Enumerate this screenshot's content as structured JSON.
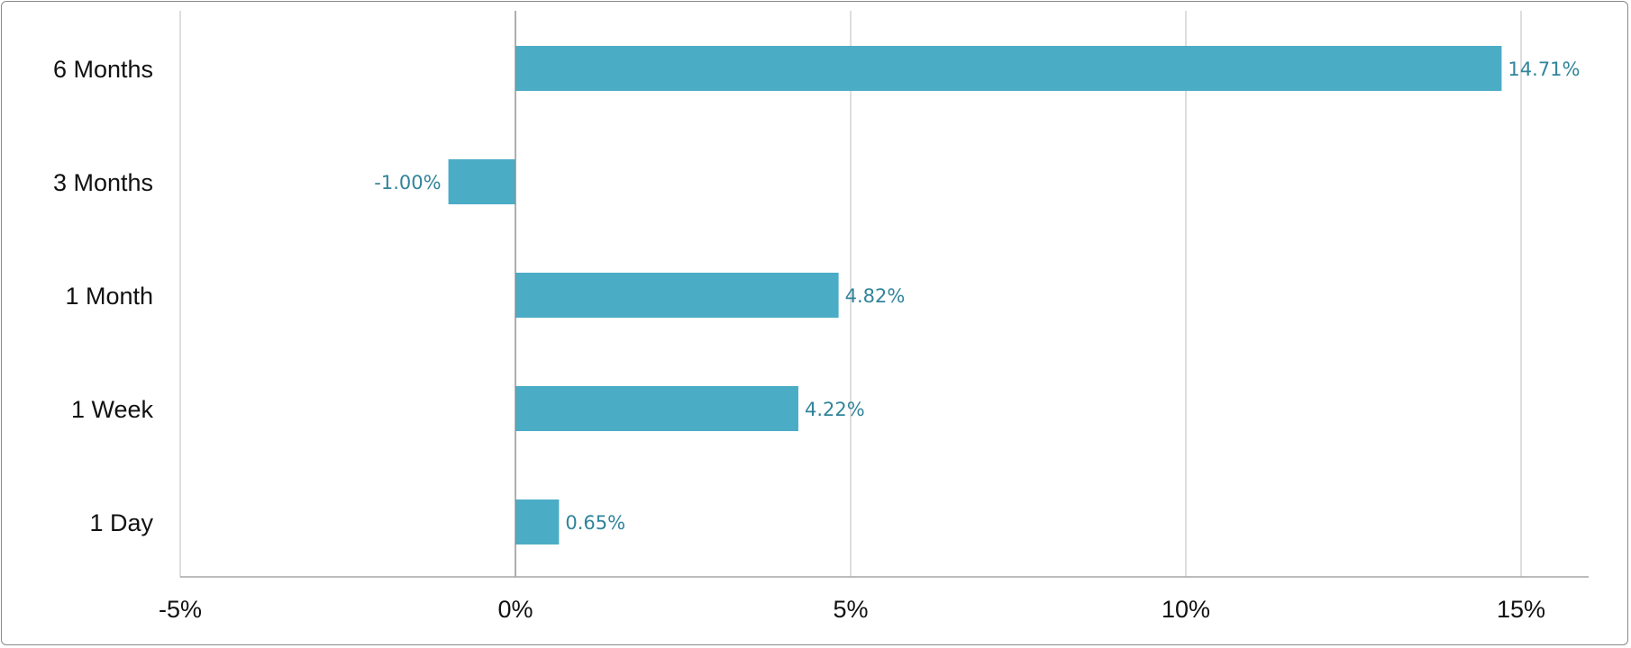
{
  "chart_data": {
    "type": "bar",
    "orientation": "horizontal",
    "categories": [
      "6 Months",
      "3 Months",
      "1 Month",
      "1 Week",
      "1 Day"
    ],
    "values": [
      14.71,
      -1.0,
      4.82,
      4.22,
      0.65
    ],
    "data_labels": [
      "14.71%",
      "-1.00%",
      "4.82%",
      "4.22%",
      "0.65%"
    ],
    "xlim": [
      -5,
      16
    ],
    "x_ticks": [
      -5,
      0,
      5,
      10,
      15
    ],
    "x_tick_labels": [
      "-5%",
      "0%",
      "5%",
      "10%",
      "15%"
    ],
    "grid": "vertical",
    "legend": "none",
    "colors": {
      "bar": "#4bacc6",
      "data_label": "#31849b",
      "gridline": "#c8c8c8",
      "axis": "#a6a6a6",
      "zero_line": "#8c8c8c"
    }
  }
}
